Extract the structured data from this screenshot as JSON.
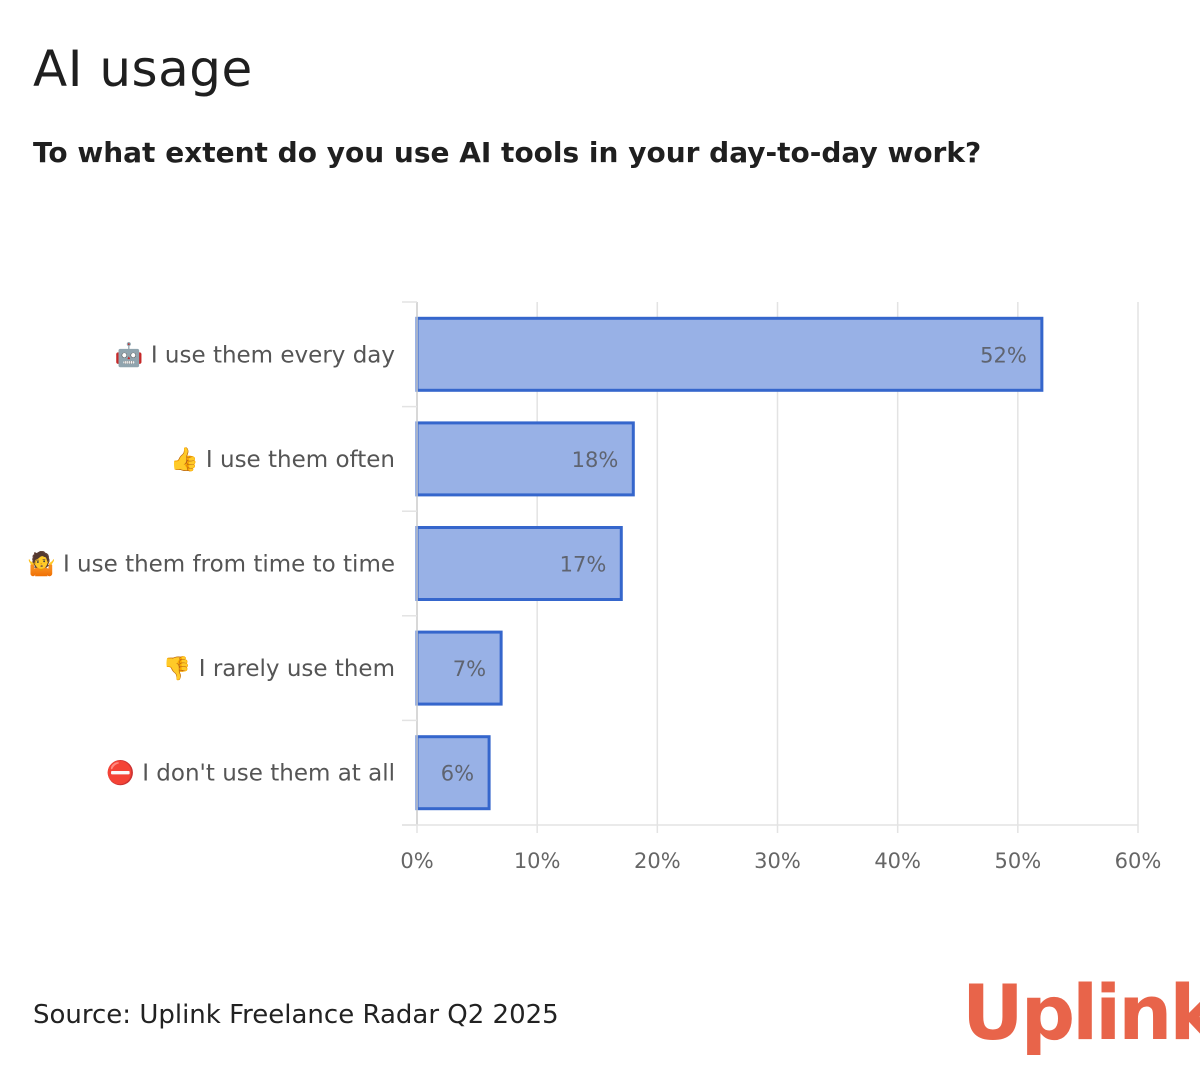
{
  "title": "AI usage",
  "subtitle": "To what extent do you use AI tools in your day-to-day work?",
  "source": "Source: Uplink Freelance Radar Q2 2025",
  "logo_text": "Uplink",
  "colors": {
    "bar_fill": "#98b1e6",
    "bar_stroke": "#3566cc",
    "grid": "#e3e3e3",
    "logo": "#e8644a"
  },
  "chart_data": {
    "type": "bar",
    "orientation": "horizontal",
    "categories": [
      "🤖 I use them every day",
      "👍 I use them often",
      "🤷 I use them from time to time",
      "👎 I rarely use them",
      "⛔ I don't use them at all"
    ],
    "values": [
      52,
      18,
      17,
      7,
      6
    ],
    "data_labels": [
      "52%",
      "18%",
      "17%",
      "7%",
      "6%"
    ],
    "xlim": [
      0,
      60
    ],
    "ticks": [
      0,
      10,
      20,
      30,
      40,
      50,
      60
    ],
    "tick_labels": [
      "0%",
      "10%",
      "20%",
      "30%",
      "40%",
      "50%",
      "60%"
    ],
    "title": "AI usage",
    "subtitle": "To what extent do you use AI tools in your day-to-day work?",
    "grid": true
  }
}
